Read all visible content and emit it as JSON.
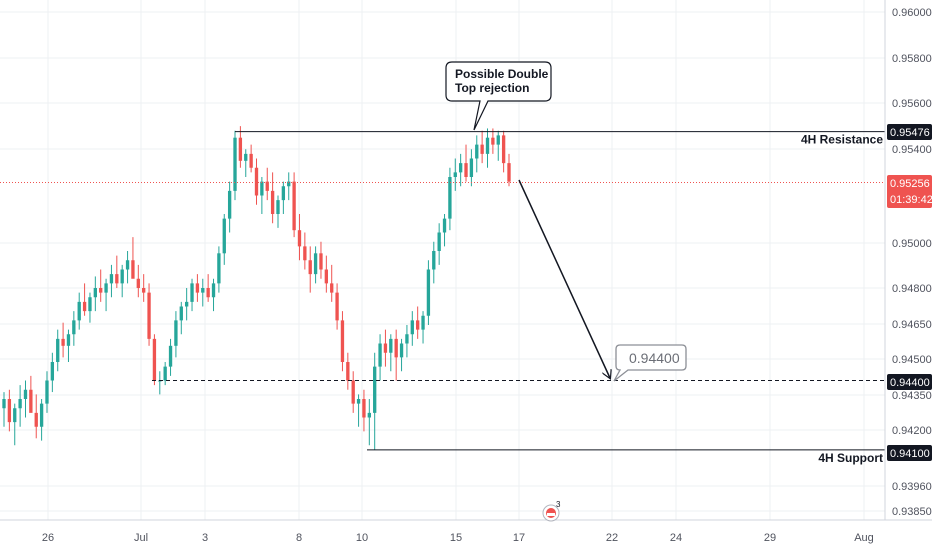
{
  "chart_data": {
    "type": "candlestick",
    "instrument_timeframe": "4H",
    "y_ticks": [
      "0.96000",
      "0.95800",
      "0.95600",
      "0.95400",
      "0.95000",
      "0.94800",
      "0.94650",
      "0.94500",
      "0.94350",
      "0.94200",
      "0.93960",
      "0.93850"
    ],
    "x_ticks": [
      "26",
      "Jul",
      "3",
      "8",
      "10",
      "15",
      "17",
      "22",
      "24",
      "29",
      "Aug"
    ],
    "ylim": [
      0.9377,
      0.9612
    ],
    "grid": true,
    "current_price": "0.95256",
    "countdown": "01:39:42",
    "resistance": {
      "label": "4H Resistance",
      "value": "0.95476"
    },
    "support": {
      "label": "4H Support",
      "value": "0.94100"
    },
    "target": {
      "value": "0.94400"
    },
    "callout": {
      "line1": "Possible Double",
      "line2": "Top rejection"
    },
    "colors": {
      "up": "#26a69a",
      "down": "#ef5350",
      "line": "#131722",
      "grid": "#eef0f3",
      "price_line": "#ef5350"
    },
    "candles": [
      [
        0.9428,
        0.9435,
        0.942,
        0.9432
      ],
      [
        0.9432,
        0.9436,
        0.9418,
        0.9422
      ],
      [
        0.9422,
        0.943,
        0.9412,
        0.9428
      ],
      [
        0.9428,
        0.9438,
        0.942,
        0.9432
      ],
      [
        0.9432,
        0.944,
        0.9424,
        0.9436
      ],
      [
        0.9436,
        0.9442,
        0.9428,
        0.9426
      ],
      [
        0.9426,
        0.9434,
        0.9415,
        0.942
      ],
      [
        0.942,
        0.9432,
        0.9414,
        0.943
      ],
      [
        0.943,
        0.9444,
        0.9426,
        0.944
      ],
      [
        0.944,
        0.9452,
        0.9435,
        0.9448
      ],
      [
        0.9448,
        0.9462,
        0.9444,
        0.9458
      ],
      [
        0.9458,
        0.9465,
        0.945,
        0.9455
      ],
      [
        0.9455,
        0.9462,
        0.9448,
        0.946
      ],
      [
        0.946,
        0.947,
        0.9455,
        0.9466
      ],
      [
        0.9466,
        0.9478,
        0.9462,
        0.9474
      ],
      [
        0.9474,
        0.9482,
        0.9468,
        0.947
      ],
      [
        0.947,
        0.9478,
        0.9465,
        0.9476
      ],
      [
        0.9476,
        0.9485,
        0.947,
        0.948
      ],
      [
        0.948,
        0.9488,
        0.9474,
        0.9478
      ],
      [
        0.9478,
        0.9484,
        0.947,
        0.9482
      ],
      [
        0.9482,
        0.949,
        0.9476,
        0.9486
      ],
      [
        0.9486,
        0.9494,
        0.948,
        0.9482
      ],
      [
        0.9482,
        0.949,
        0.9476,
        0.9488
      ],
      [
        0.9488,
        0.9496,
        0.9482,
        0.9492
      ],
      [
        0.9492,
        0.9502,
        0.9486,
        0.9484
      ],
      [
        0.9484,
        0.949,
        0.9476,
        0.948
      ],
      [
        0.948,
        0.9486,
        0.9474,
        0.9478
      ],
      [
        0.9478,
        0.9482,
        0.9455,
        0.9458
      ],
      [
        0.9458,
        0.946,
        0.9438,
        0.944
      ],
      [
        0.944,
        0.9444,
        0.9434,
        0.944
      ],
      [
        0.944,
        0.9448,
        0.9438,
        0.9446
      ],
      [
        0.9446,
        0.9458,
        0.9442,
        0.9455
      ],
      [
        0.9455,
        0.947,
        0.945,
        0.9466
      ],
      [
        0.9466,
        0.9474,
        0.946,
        0.9472
      ],
      [
        0.9472,
        0.948,
        0.9466,
        0.9474
      ],
      [
        0.9474,
        0.9484,
        0.947,
        0.9482
      ],
      [
        0.9482,
        0.9486,
        0.9474,
        0.9478
      ],
      [
        0.9478,
        0.9484,
        0.9472,
        0.948
      ],
      [
        0.948,
        0.9486,
        0.9474,
        0.9476
      ],
      [
        0.9476,
        0.9484,
        0.947,
        0.9482
      ],
      [
        0.9482,
        0.9498,
        0.9478,
        0.9495
      ],
      [
        0.9495,
        0.9512,
        0.949,
        0.951
      ],
      [
        0.951,
        0.9526,
        0.9504,
        0.9522
      ],
      [
        0.9522,
        0.9548,
        0.9518,
        0.9545
      ],
      [
        0.9545,
        0.955,
        0.9532,
        0.9535
      ],
      [
        0.9535,
        0.954,
        0.9528,
        0.9538
      ],
      [
        0.9538,
        0.9542,
        0.953,
        0.9532
      ],
      [
        0.9532,
        0.9536,
        0.9516,
        0.952
      ],
      [
        0.952,
        0.9528,
        0.9512,
        0.9526
      ],
      [
        0.9526,
        0.9532,
        0.9518,
        0.9522
      ],
      [
        0.9522,
        0.953,
        0.9508,
        0.9512
      ],
      [
        0.9512,
        0.952,
        0.9506,
        0.9518
      ],
      [
        0.9518,
        0.9526,
        0.9512,
        0.9524
      ],
      [
        0.9524,
        0.953,
        0.9518,
        0.9526
      ],
      [
        0.9526,
        0.953,
        0.9502,
        0.9505
      ],
      [
        0.9505,
        0.9512,
        0.9492,
        0.9498
      ],
      [
        0.9498,
        0.9504,
        0.9488,
        0.9492
      ],
      [
        0.9492,
        0.9498,
        0.9478,
        0.9486
      ],
      [
        0.9486,
        0.9498,
        0.9482,
        0.9495
      ],
      [
        0.9495,
        0.95,
        0.9484,
        0.9488
      ],
      [
        0.9488,
        0.9494,
        0.9478,
        0.9482
      ],
      [
        0.9482,
        0.949,
        0.9474,
        0.9478
      ],
      [
        0.9478,
        0.9482,
        0.9462,
        0.9466
      ],
      [
        0.9466,
        0.947,
        0.9444,
        0.9448
      ],
      [
        0.9448,
        0.9452,
        0.9436,
        0.944
      ],
      [
        0.944,
        0.9444,
        0.9426,
        0.943
      ],
      [
        0.943,
        0.9434,
        0.942,
        0.9432
      ],
      [
        0.9432,
        0.9436,
        0.9418,
        0.9424
      ],
      [
        0.9424,
        0.9432,
        0.9412,
        0.9426
      ],
      [
        0.9426,
        0.9452,
        0.941,
        0.9446
      ],
      [
        0.9446,
        0.946,
        0.944,
        0.9456
      ],
      [
        0.9456,
        0.9462,
        0.9446,
        0.9452
      ],
      [
        0.9452,
        0.946,
        0.9444,
        0.9458
      ],
      [
        0.9458,
        0.9462,
        0.944,
        0.945
      ],
      [
        0.945,
        0.9458,
        0.9444,
        0.9456
      ],
      [
        0.9456,
        0.9464,
        0.945,
        0.946
      ],
      [
        0.946,
        0.947,
        0.9455,
        0.9466
      ],
      [
        0.9466,
        0.9472,
        0.9458,
        0.9462
      ],
      [
        0.9462,
        0.947,
        0.9456,
        0.9468
      ],
      [
        0.9468,
        0.9492,
        0.9464,
        0.9488
      ],
      [
        0.9488,
        0.95,
        0.9482,
        0.9496
      ],
      [
        0.9496,
        0.9508,
        0.949,
        0.9504
      ],
      [
        0.9504,
        0.9512,
        0.9498,
        0.951
      ],
      [
        0.951,
        0.9532,
        0.9505,
        0.9528
      ],
      [
        0.9528,
        0.9536,
        0.9522,
        0.953
      ],
      [
        0.953,
        0.9538,
        0.9524,
        0.9534
      ],
      [
        0.9534,
        0.9542,
        0.9526,
        0.9528
      ],
      [
        0.9528,
        0.954,
        0.9524,
        0.9536
      ],
      [
        0.9536,
        0.9546,
        0.953,
        0.9542
      ],
      [
        0.9542,
        0.9548,
        0.9534,
        0.9538
      ],
      [
        0.9538,
        0.9549,
        0.9532,
        0.9545
      ],
      [
        0.9545,
        0.9549,
        0.9538,
        0.9542
      ],
      [
        0.9542,
        0.9548,
        0.9535,
        0.9546
      ],
      [
        0.9546,
        0.9548,
        0.953,
        0.9534
      ],
      [
        0.9534,
        0.9538,
        0.9524,
        0.9526
      ]
    ]
  }
}
